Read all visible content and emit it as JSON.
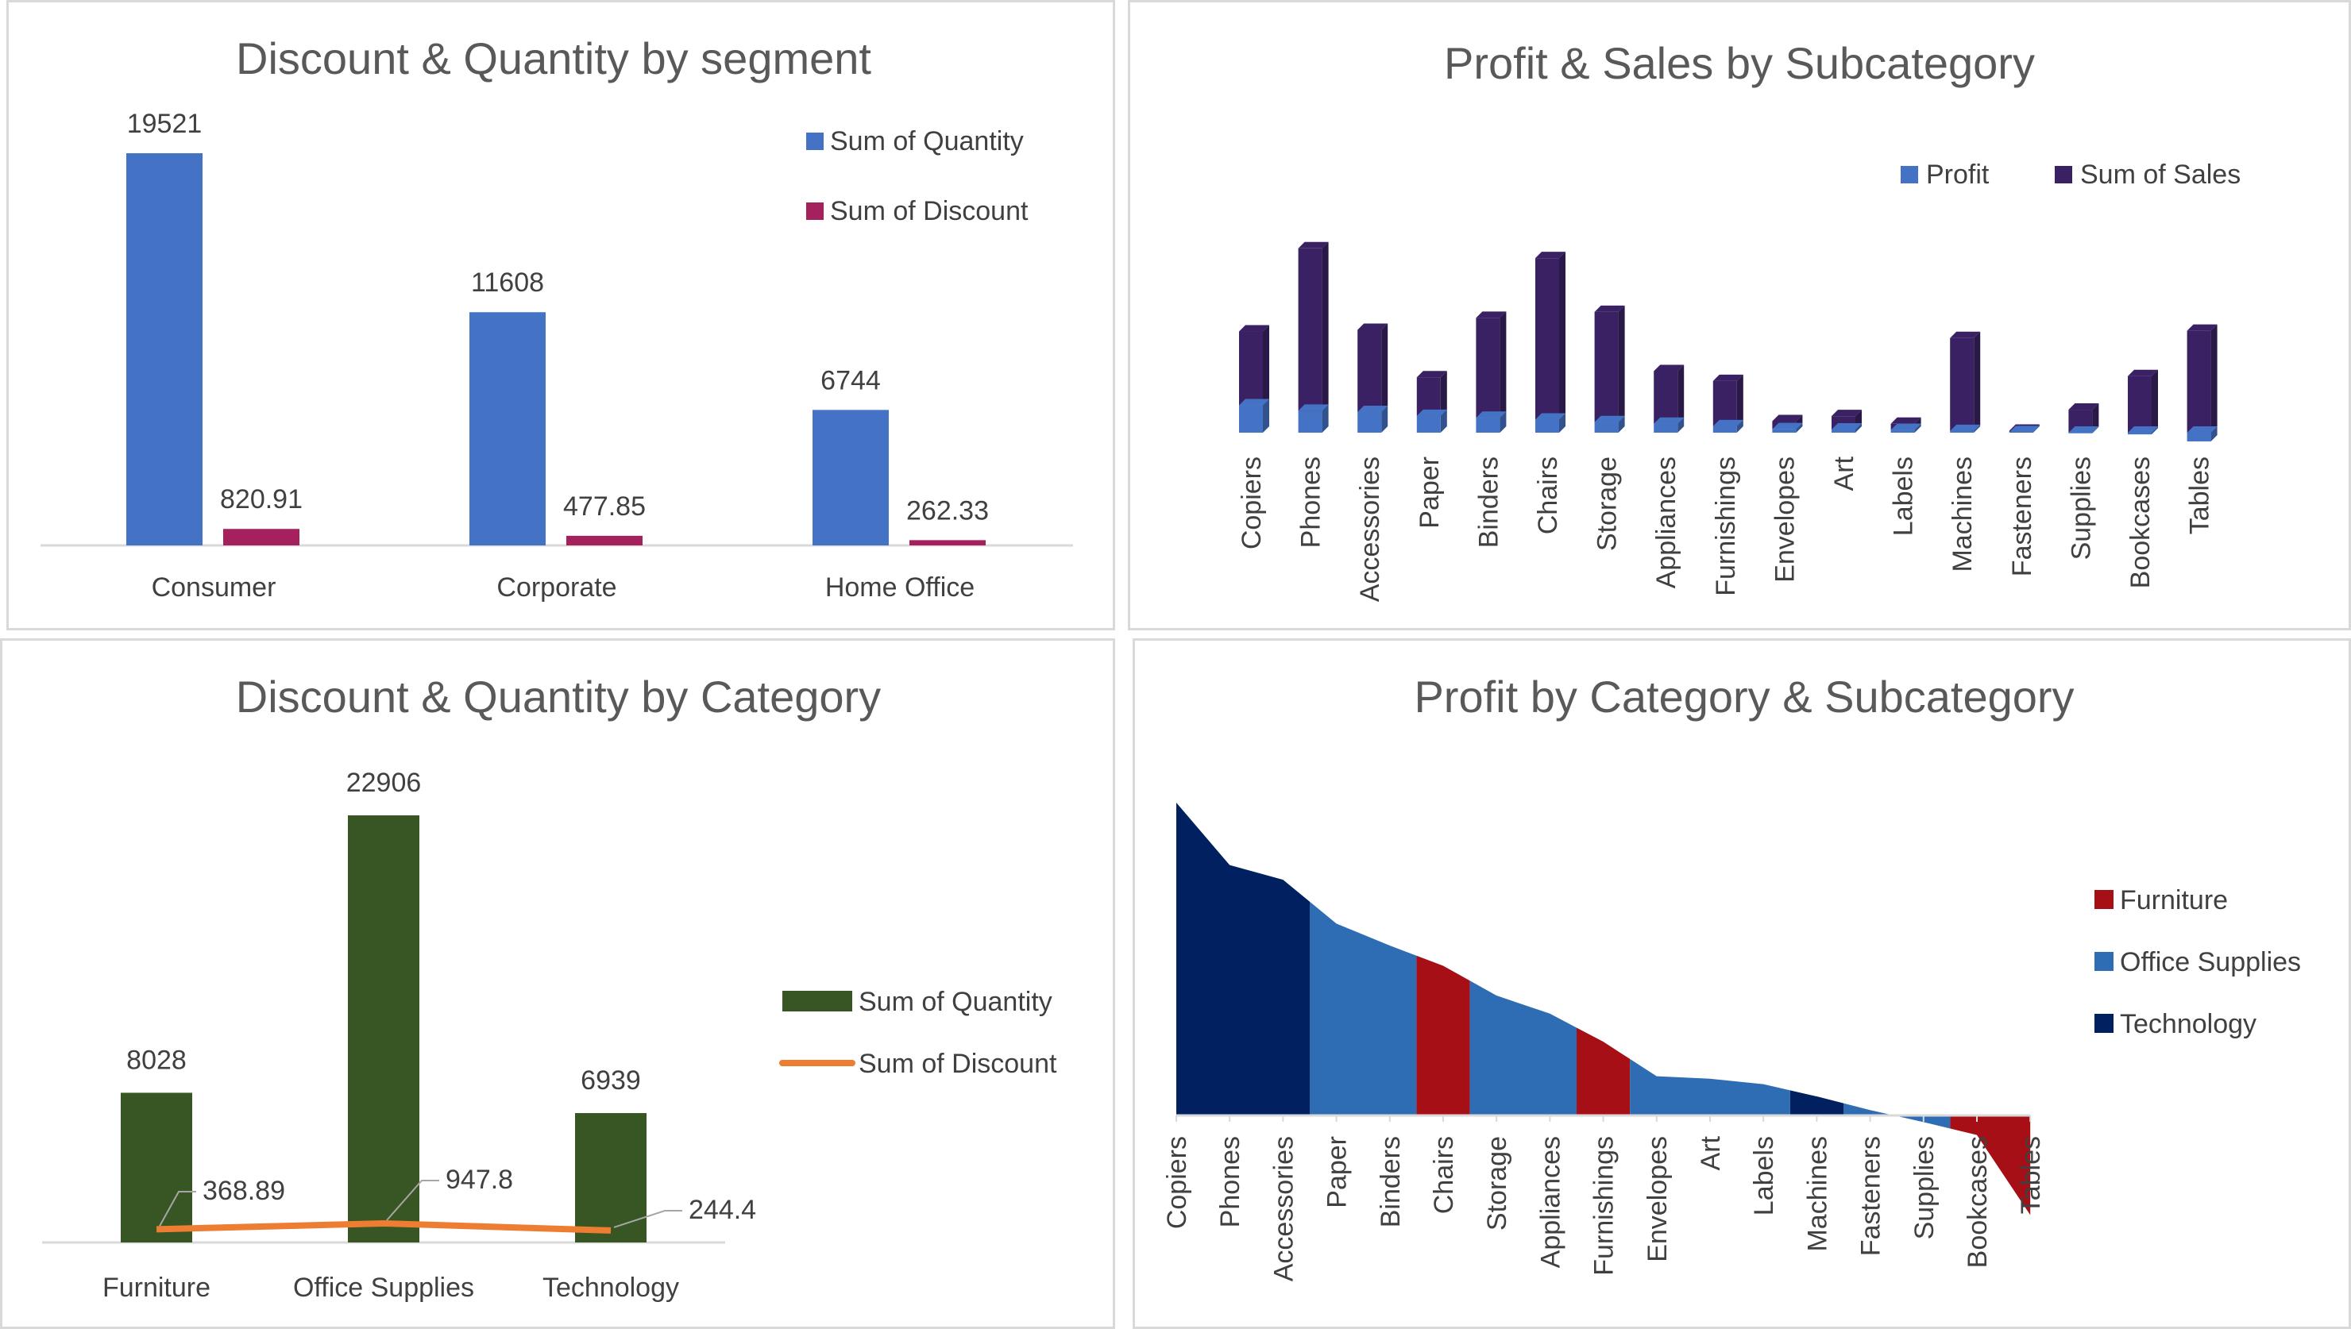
{
  "chart_data": [
    {
      "id": "segment",
      "type": "bar",
      "title": "Discount & Quantity by segment",
      "categories": [
        "Consumer",
        "Corporate",
        "Home Office"
      ],
      "series": [
        {
          "name": "Sum of Quantity",
          "color": "#4472C4",
          "values": [
            19521,
            11608,
            6744
          ],
          "labels": [
            "19521",
            "11608",
            "6744"
          ]
        },
        {
          "name": "Sum of Discount",
          "color": "#A5215E",
          "values": [
            820.91,
            477.85,
            262.33
          ],
          "labels": [
            "820.91",
            "477.85",
            "262.33"
          ]
        }
      ],
      "legend_position": "top-right"
    },
    {
      "id": "subcategory",
      "type": "bar",
      "stacked": true,
      "style": "3d-column",
      "title": "Profit & Sales by Subcategory",
      "categories": [
        "Copiers",
        "Phones",
        "Accessories",
        "Paper",
        "Binders",
        "Chairs",
        "Storage",
        "Appliances",
        "Furnishings",
        "Envelopes",
        "Art",
        "Labels",
        "Machines",
        "Fasteners",
        "Supplies",
        "Bookcases",
        "Tables"
      ],
      "series": [
        {
          "name": "Profit",
          "color": "#4472C4",
          "values": [
            55600,
            44500,
            41900,
            34100,
            30200,
            26600,
            21300,
            18100,
            13100,
            6960,
            6530,
            5550,
            3380,
            950,
            -1190,
            -3470,
            -17700
          ]
        },
        {
          "name": "Sum of Sales",
          "color": "#3A2163",
          "values": [
            150000,
            330000,
            167000,
            78500,
            203000,
            328000,
            224000,
            107000,
            92000,
            16500,
            27100,
            12500,
            189000,
            3020,
            46700,
            115000,
            207000
          ]
        }
      ],
      "legend_position": "top-right"
    },
    {
      "id": "category",
      "type": "bar",
      "title": "Discount & Quantity by Category",
      "categories": [
        "Furniture",
        "Office Supplies",
        "Technology"
      ],
      "series": [
        {
          "name": "Sum of Quantity",
          "type": "bar",
          "color": "#375623",
          "values": [
            8028,
            22906,
            6939
          ],
          "labels": [
            "8028",
            "22906",
            "6939"
          ]
        },
        {
          "name": "Sum of Discount",
          "type": "line",
          "color": "#ED7D31",
          "values": [
            368.89,
            947.8,
            244.4
          ],
          "labels": [
            "368.89",
            "947.8",
            "244.4"
          ]
        }
      ],
      "legend_position": "right"
    },
    {
      "id": "profit-area",
      "type": "area",
      "title": "Profit by Category & Subcategory",
      "categories": [
        "Copiers",
        "Phones",
        "Accessories",
        "Paper",
        "Binders",
        "Chairs",
        "Storage",
        "Appliances",
        "Furnishings",
        "Envelopes",
        "Art",
        "Labels",
        "Machines",
        "Fasteners",
        "Supplies",
        "Bookcases",
        "Tables"
      ],
      "segment_of": [
        "Technology",
        "Technology",
        "Technology",
        "Office Supplies",
        "Office Supplies",
        "Furniture",
        "Office Supplies",
        "Office Supplies",
        "Furniture",
        "Office Supplies",
        "Office Supplies",
        "Office Supplies",
        "Technology",
        "Office Supplies",
        "Office Supplies",
        "Furniture",
        "Furniture"
      ],
      "series": [
        {
          "name": "Furniture",
          "color": "#A50F15"
        },
        {
          "name": "Office Supplies",
          "color": "#2E6DB4"
        },
        {
          "name": "Technology",
          "color": "#002060"
        }
      ],
      "values": [
        55600,
        44500,
        41900,
        34100,
        30200,
        26600,
        21300,
        18100,
        13100,
        6960,
        6530,
        5550,
        3380,
        950,
        -1190,
        -3470,
        -17700
      ],
      "legend_position": "right"
    }
  ]
}
